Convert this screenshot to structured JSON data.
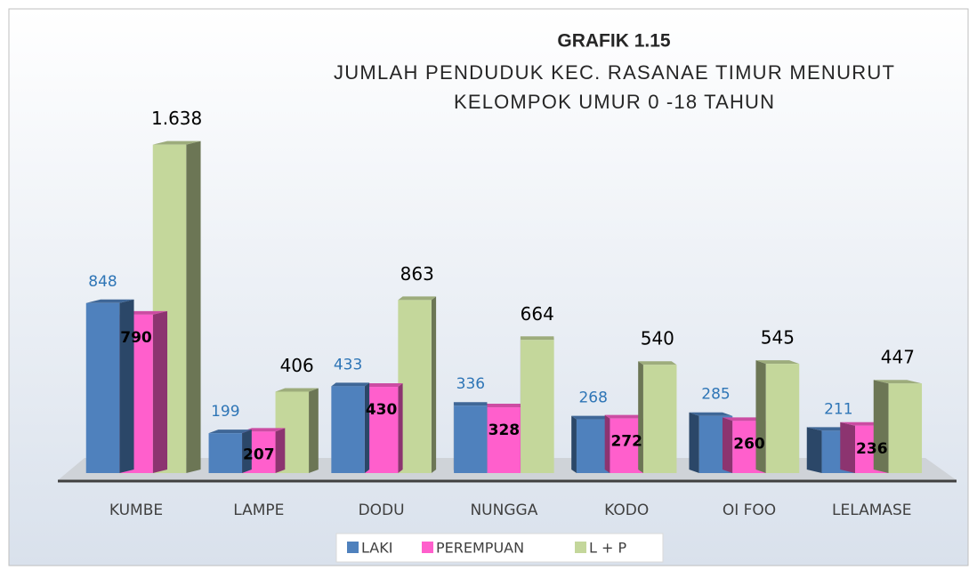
{
  "chart_data": {
    "type": "bar",
    "title": "GRAFIK 1.15",
    "subtitle": [
      "JUMLAH PENDUDUK KEC. RASANAE TIMUR MENURUT",
      "KELOMPOK UMUR 0 -18 TAHUN"
    ],
    "categories": [
      "KUMBE",
      "LAMPE",
      "DODU",
      "NUNGGA",
      "KODO",
      "OI FOO",
      "LELAMASE"
    ],
    "series": [
      {
        "name": "LAKI",
        "color": "#4f81bd",
        "values": [
          848,
          199,
          433,
          336,
          268,
          285,
          211
        ]
      },
      {
        "name": "PEREMPUAN",
        "color": "#ff5fcc",
        "values": [
          790,
          207,
          430,
          328,
          272,
          260,
          236
        ]
      },
      {
        "name": "L + P",
        "color": "#c4d79b",
        "values": [
          1638,
          406,
          863,
          664,
          540,
          545,
          447
        ],
        "value_labels": [
          "1.638",
          "406",
          "863",
          "664",
          "540",
          "545",
          "447"
        ]
      }
    ],
    "legend": "bottom"
  }
}
